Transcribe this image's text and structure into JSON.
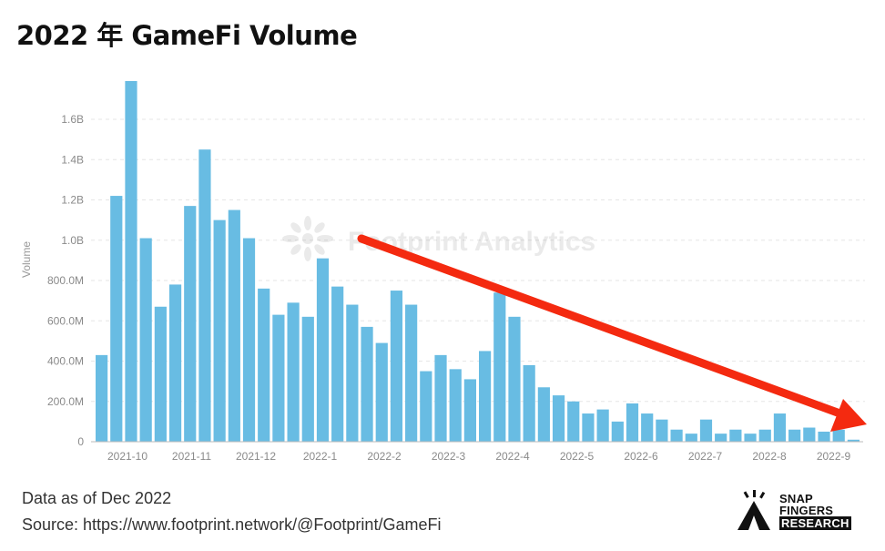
{
  "title": "2022 年 GameFi Volume",
  "chart_data": {
    "type": "bar",
    "title": "2022 年 GameFi Volume",
    "xlabel": "",
    "ylabel": "Volume",
    "ylim": [
      0,
      1800000000
    ],
    "grid": true,
    "yticks": [
      0,
      200000000,
      400000000,
      600000000,
      800000000,
      1000000000,
      1200000000,
      1400000000,
      1600000000
    ],
    "ytick_labels": [
      "0",
      "200.0M",
      "400.0M",
      "600.0M",
      "800.0M",
      "1.0B",
      "1.2B",
      "1.4B",
      "1.6B"
    ],
    "xtick_labels": [
      "2021-10",
      "2021-11",
      "2021-12",
      "2022-1",
      "2022-2",
      "2022-3",
      "2022-4",
      "2022-5",
      "2022-6",
      "2022-7",
      "2022-8",
      "2022-9"
    ],
    "series": [
      {
        "name": "Volume",
        "color": "#68bce3",
        "values": [
          430000000,
          1220000000,
          1790000000,
          1010000000,
          670000000,
          780000000,
          1170000000,
          1450000000,
          1100000000,
          1150000000,
          1010000000,
          760000000,
          630000000,
          690000000,
          620000000,
          910000000,
          770000000,
          680000000,
          570000000,
          490000000,
          750000000,
          680000000,
          350000000,
          430000000,
          360000000,
          310000000,
          450000000,
          740000000,
          620000000,
          380000000,
          270000000,
          230000000,
          200000000,
          140000000,
          160000000,
          100000000,
          190000000,
          140000000,
          110000000,
          60000000,
          40000000,
          110000000,
          40000000,
          60000000,
          40000000,
          60000000,
          140000000,
          60000000,
          70000000,
          50000000,
          60000000,
          10000000
        ]
      }
    ],
    "watermark": "Footprint Analytics",
    "annotation": "red downward trend arrow"
  },
  "footer": {
    "data_note": "Data as of Dec 2022",
    "source": "Source: https://www.footprint.network/@Footprint/GameFi"
  },
  "logo": {
    "line1": "SNAP",
    "line2": "FINGERS",
    "line3": "RESEARCH"
  },
  "colors": {
    "bar": "#68bce3",
    "arrow": "#f42a10",
    "axis_text": "#8a8a8a"
  }
}
